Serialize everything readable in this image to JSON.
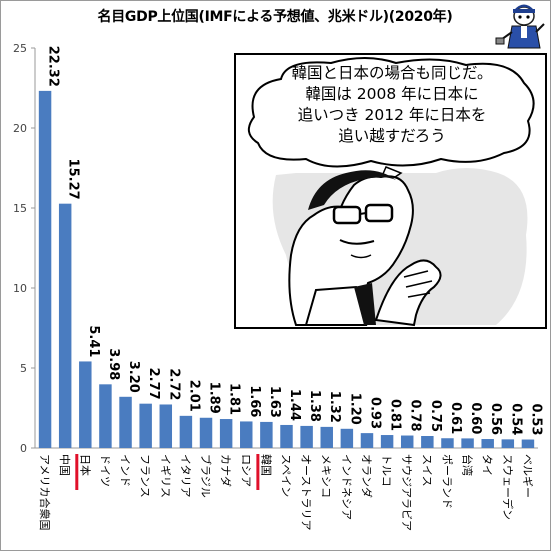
{
  "title": "名目GDP上位国(IMFによる予想値、兆米ドル)(2020年)",
  "speech_bubble": {
    "lines": [
      "韓国と日本の場合も同じだ。",
      "韓国は 2008 年に日本に",
      "追いつき 2012 年に日本を",
      "追い越すだろう"
    ]
  },
  "colors": {
    "bar": "#4a7cc0",
    "highlight": "#e0102a",
    "grid": "#d9d9d9",
    "axis": "#999999"
  },
  "highlighted_categories": [
    "日本",
    "韓国"
  ],
  "chart_data": {
    "type": "bar",
    "title": "名目GDP上位国(IMFによる予想値、兆米ドル)(2020年)",
    "xlabel": "",
    "ylabel": "",
    "ylim": [
      0,
      25
    ],
    "yticks": [
      0,
      5,
      10,
      15,
      20,
      25
    ],
    "grid": false,
    "categories": [
      "アメリカ合衆国",
      "中国",
      "日本",
      "ドイツ",
      "インド",
      "フランス",
      "イギリス",
      "イタリア",
      "ブラジル",
      "カナダ",
      "ロシア",
      "韓国",
      "スペイン",
      "オーストラリア",
      "メキシコ",
      "インドネシア",
      "オランダ",
      "トルコ",
      "サウジアラビア",
      "スイス",
      "ポーランド",
      "台湾",
      "タイ",
      "スウェーデン",
      "ベルギー"
    ],
    "values": [
      22.32,
      15.27,
      5.41,
      3.98,
      3.2,
      2.77,
      2.72,
      2.01,
      1.89,
      1.81,
      1.66,
      1.63,
      1.44,
      1.38,
      1.32,
      1.2,
      0.93,
      0.81,
      0.78,
      0.75,
      0.61,
      0.6,
      0.56,
      0.54,
      0.53
    ],
    "value_labels": [
      "22.32",
      "15.27",
      "5.41",
      "3.98",
      "3.20",
      "2.77",
      "2.72",
      "2.01",
      "1.89",
      "1.81",
      "1.66",
      "1.63",
      "1.44",
      "1.38",
      "1.32",
      "1.20",
      "0.93",
      "0.81",
      "0.78",
      "0.75",
      "0.61",
      "0.60",
      "0.56",
      "0.54",
      "0.53"
    ]
  }
}
